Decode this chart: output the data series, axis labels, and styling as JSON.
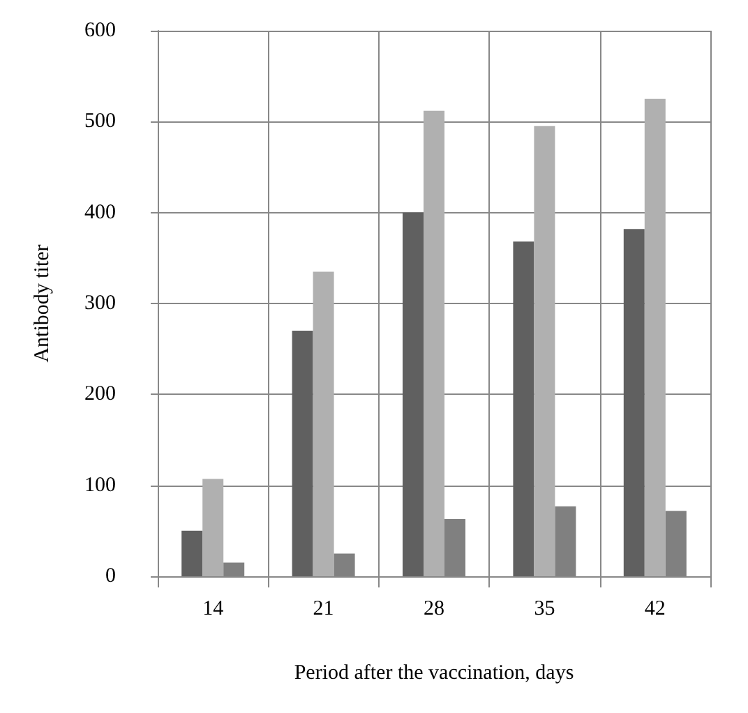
{
  "chart_data": {
    "type": "bar",
    "xlabel": "Period after the vaccination, days",
    "ylabel": "Antibody titer",
    "categories": [
      "14",
      "21",
      "28",
      "35",
      "42"
    ],
    "series": [
      {
        "color": "#606060",
        "values": [
          50,
          270,
          400,
          368,
          382
        ]
      },
      {
        "color": "#b0b0b0",
        "values": [
          107,
          335,
          512,
          495,
          525
        ]
      },
      {
        "color": "#808080",
        "values": [
          15,
          25,
          63,
          77,
          72
        ]
      }
    ],
    "ylim": [
      0,
      600
    ],
    "yticks": [
      0,
      100,
      200,
      300,
      400,
      500,
      600
    ],
    "grid": true
  }
}
